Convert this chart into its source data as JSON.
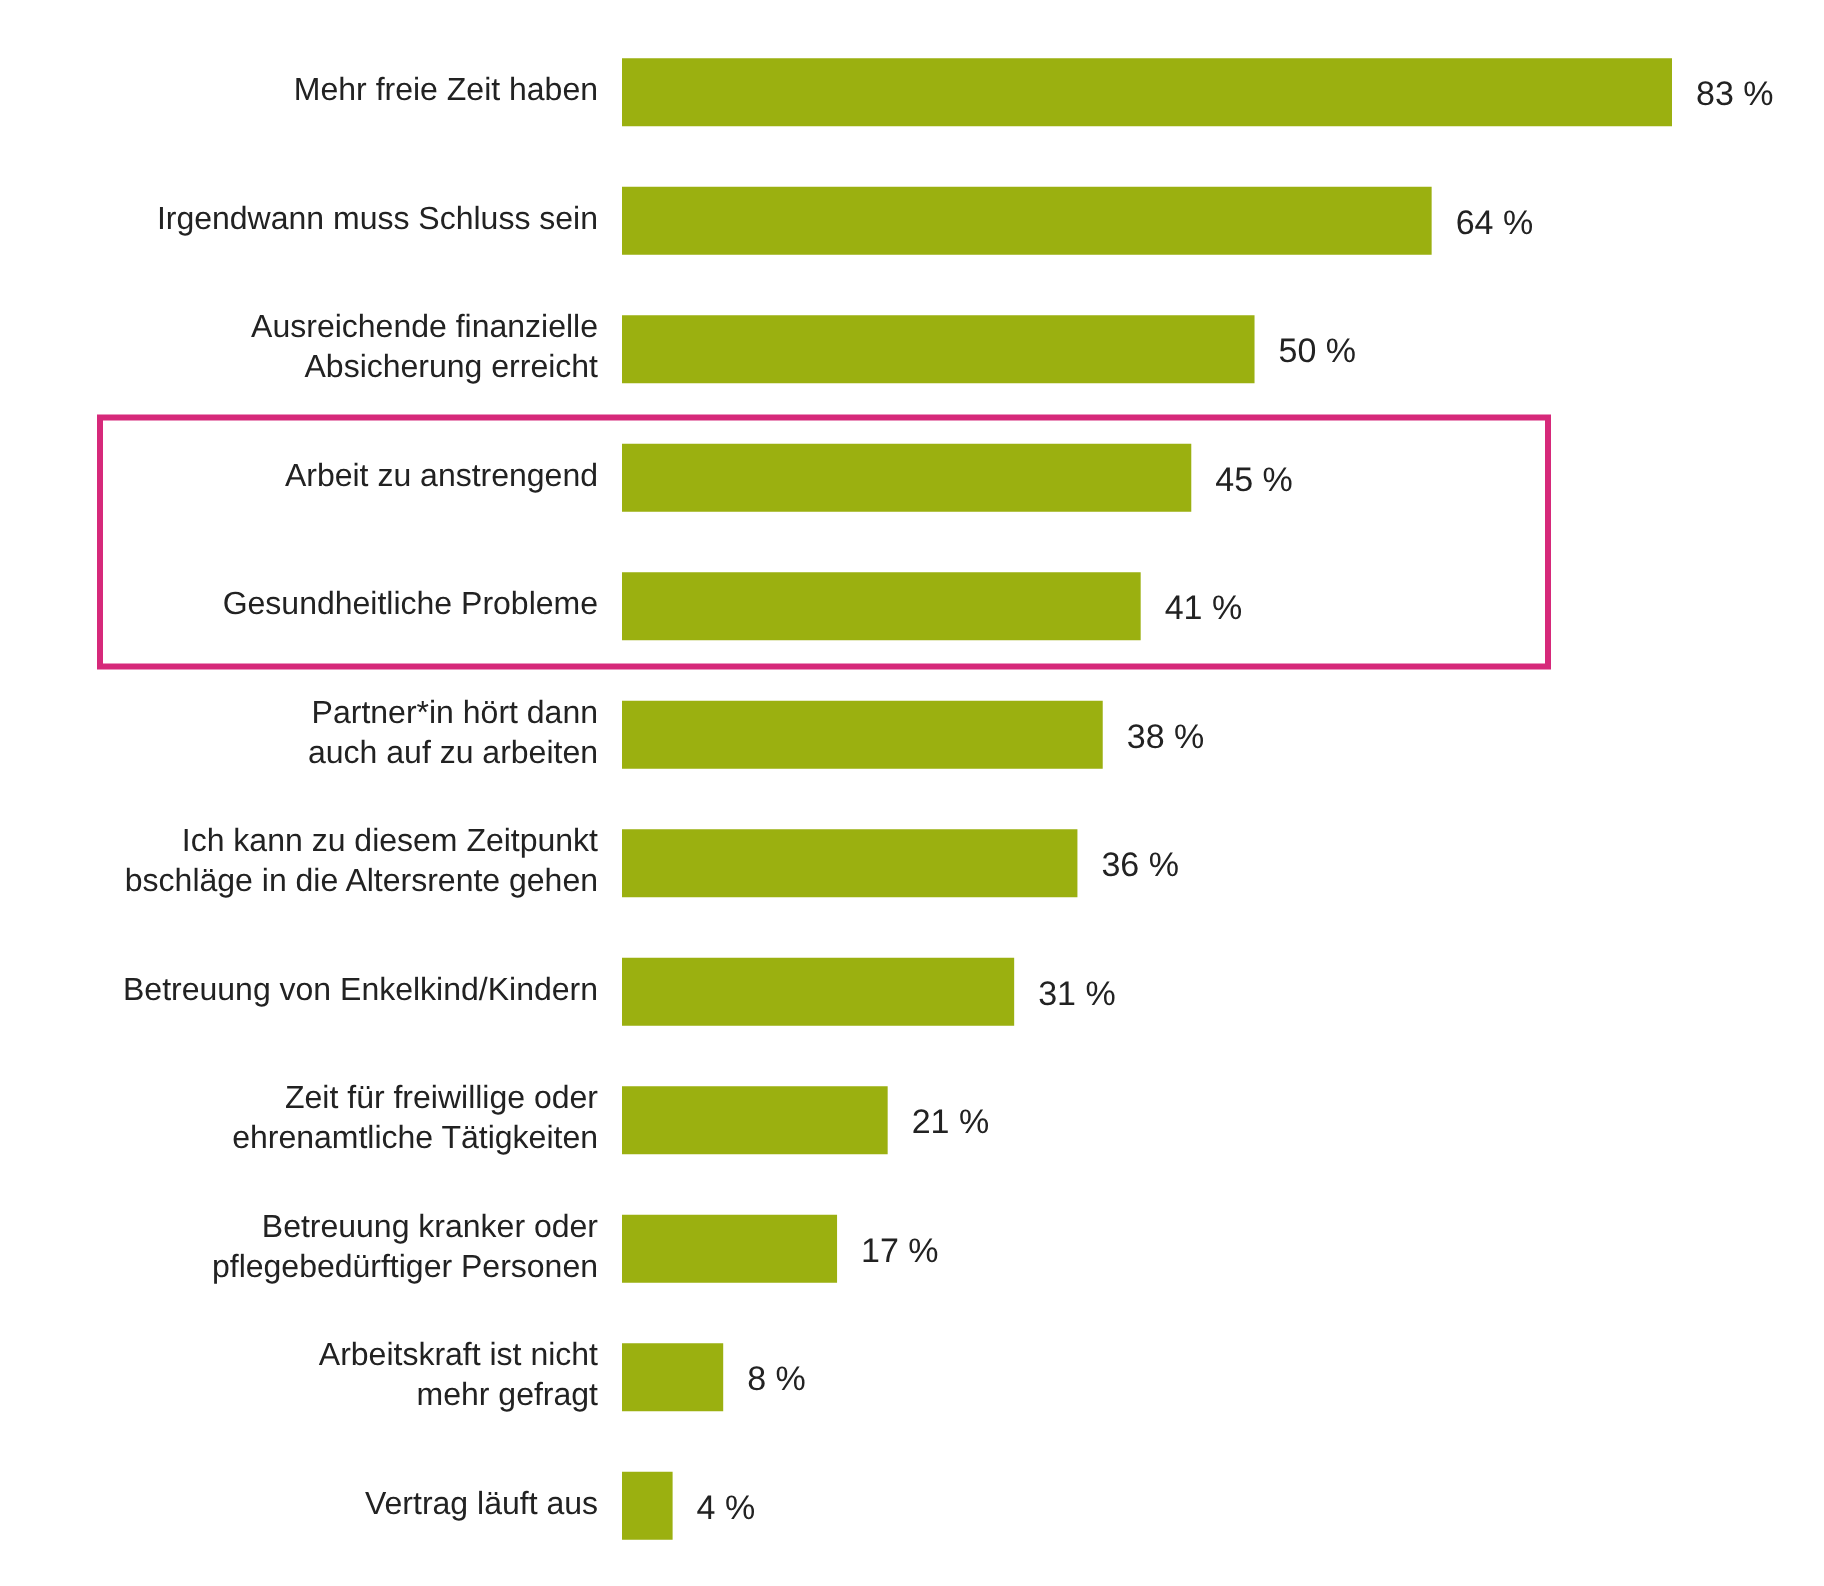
{
  "chart_data": {
    "type": "bar",
    "orientation": "horizontal",
    "categories": [
      "Mehr freie Zeit haben",
      "Irgendwann muss Schluss sein",
      "Ausreichende finanzielle\nAbsicherung erreicht",
      "Arbeit zu anstrengend",
      "Gesundheitliche Probleme",
      "Partner*in hört dann\nauch auf zu arbeiten",
      "Ich kann zu diesem Zeitpunkt\nbschläge in die Altersrente gehen",
      "Betreuung von Enkelkind/Kindern",
      "Zeit für freiwillige oder\nehrenamtliche Tätigkeiten",
      "Betreuung kranker oder\npflegebedürftiger Personen",
      "Arbeitskraft ist nicht\nmehr gefragt",
      "Vertrag läuft aus"
    ],
    "values": [
      83,
      64,
      50,
      45,
      41,
      38,
      36,
      31,
      21,
      17,
      8,
      4
    ],
    "value_labels": [
      "83 %",
      "64 %",
      "50 %",
      "45 %",
      "41 %",
      "38 %",
      "36 %",
      "31 %",
      "21 %",
      "17 %",
      "8 %",
      "4 %"
    ],
    "color": "#9bb010"
  }
}
